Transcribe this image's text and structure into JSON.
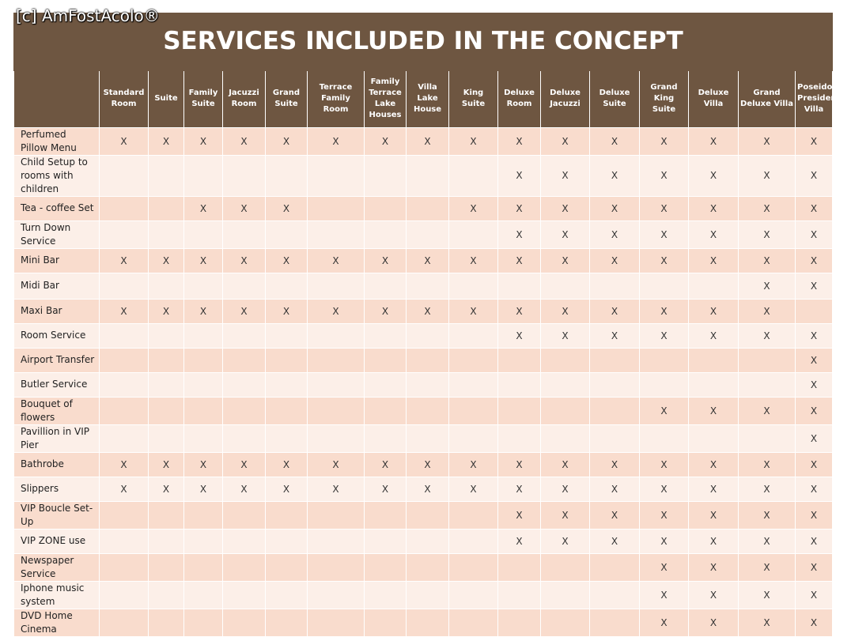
{
  "watermark": "[c] AmFostAcolo®",
  "title": "SERVICES INCLUDED IN THE CONCEPT",
  "columns": [
    "Standard Room",
    "Suite",
    "Family Suite",
    "Jacuzzi Room",
    "Grand Suite",
    "Terrace Family Room",
    "Family Terrace Lake Houses",
    "Villa Lake House",
    "King Suite",
    "Deluxe Room",
    "Deluxe Jacuzzi",
    "Deluxe Suite",
    "Grand King Suite",
    "Deluxe Villa",
    "Grand Deluxe Villa",
    "Poseidon Presidential Villa"
  ],
  "mark": "X",
  "rows": [
    {
      "label": "Perfumed Pillow Menu",
      "marks": [
        1,
        1,
        1,
        1,
        1,
        1,
        1,
        1,
        1,
        1,
        1,
        1,
        1,
        1,
        1,
        1
      ]
    },
    {
      "label": "Child Setup to rooms with children",
      "marks": [
        0,
        0,
        0,
        0,
        0,
        0,
        0,
        0,
        0,
        1,
        1,
        1,
        1,
        1,
        1,
        1
      ]
    },
    {
      "label": "Tea - coffee Set",
      "marks": [
        0,
        0,
        1,
        1,
        1,
        0,
        0,
        0,
        1,
        1,
        1,
        1,
        1,
        1,
        1,
        1
      ]
    },
    {
      "label": "Turn Down Service",
      "marks": [
        0,
        0,
        0,
        0,
        0,
        0,
        0,
        0,
        0,
        1,
        1,
        1,
        1,
        1,
        1,
        1
      ]
    },
    {
      "label": "Mini Bar",
      "marks": [
        1,
        1,
        1,
        1,
        1,
        1,
        1,
        1,
        1,
        1,
        1,
        1,
        1,
        1,
        1,
        1
      ]
    },
    {
      "label": "Midi Bar",
      "marks": [
        0,
        0,
        0,
        0,
        0,
        0,
        0,
        0,
        0,
        0,
        0,
        0,
        0,
        0,
        1,
        1
      ]
    },
    {
      "label": "Maxi Bar",
      "marks": [
        1,
        1,
        1,
        1,
        1,
        1,
        1,
        1,
        1,
        1,
        1,
        1,
        1,
        1,
        1,
        0
      ]
    },
    {
      "label": "Room Service",
      "marks": [
        0,
        0,
        0,
        0,
        0,
        0,
        0,
        0,
        0,
        1,
        1,
        1,
        1,
        1,
        1,
        1
      ]
    },
    {
      "label": "Airport Transfer",
      "marks": [
        0,
        0,
        0,
        0,
        0,
        0,
        0,
        0,
        0,
        0,
        0,
        0,
        0,
        0,
        0,
        1
      ]
    },
    {
      "label": "Butler Service",
      "marks": [
        0,
        0,
        0,
        0,
        0,
        0,
        0,
        0,
        0,
        0,
        0,
        0,
        0,
        0,
        0,
        1
      ]
    },
    {
      "label": "Bouquet of flowers",
      "marks": [
        0,
        0,
        0,
        0,
        0,
        0,
        0,
        0,
        0,
        0,
        0,
        0,
        1,
        1,
        1,
        1
      ]
    },
    {
      "label": "Pavillion in VIP Pier",
      "marks": [
        0,
        0,
        0,
        0,
        0,
        0,
        0,
        0,
        0,
        0,
        0,
        0,
        0,
        0,
        0,
        1
      ]
    },
    {
      "label": "Bathrobe",
      "marks": [
        1,
        1,
        1,
        1,
        1,
        1,
        1,
        1,
        1,
        1,
        1,
        1,
        1,
        1,
        1,
        1
      ]
    },
    {
      "label": "Slippers",
      "marks": [
        1,
        1,
        1,
        1,
        1,
        1,
        1,
        1,
        1,
        1,
        1,
        1,
        1,
        1,
        1,
        1
      ]
    },
    {
      "label": "VIP Boucle Set-Up",
      "marks": [
        0,
        0,
        0,
        0,
        0,
        0,
        0,
        0,
        0,
        1,
        1,
        1,
        1,
        1,
        1,
        1
      ]
    },
    {
      "label": "VIP ZONE use",
      "marks": [
        0,
        0,
        0,
        0,
        0,
        0,
        0,
        0,
        0,
        1,
        1,
        1,
        1,
        1,
        1,
        1
      ]
    },
    {
      "label": "Newspaper Service",
      "marks": [
        0,
        0,
        0,
        0,
        0,
        0,
        0,
        0,
        0,
        0,
        0,
        0,
        1,
        1,
        1,
        1
      ]
    },
    {
      "label": "Iphone music system",
      "marks": [
        0,
        0,
        0,
        0,
        0,
        0,
        0,
        0,
        0,
        0,
        0,
        0,
        1,
        1,
        1,
        1
      ]
    },
    {
      "label": "DVD Home Cinema",
      "marks": [
        0,
        0,
        0,
        0,
        0,
        0,
        0,
        0,
        0,
        0,
        0,
        0,
        1,
        1,
        1,
        1
      ]
    }
  ],
  "colors": {
    "header_bg": "#6e5641",
    "row_odd": "#f9dccd",
    "row_even": "#fcefe8"
  }
}
